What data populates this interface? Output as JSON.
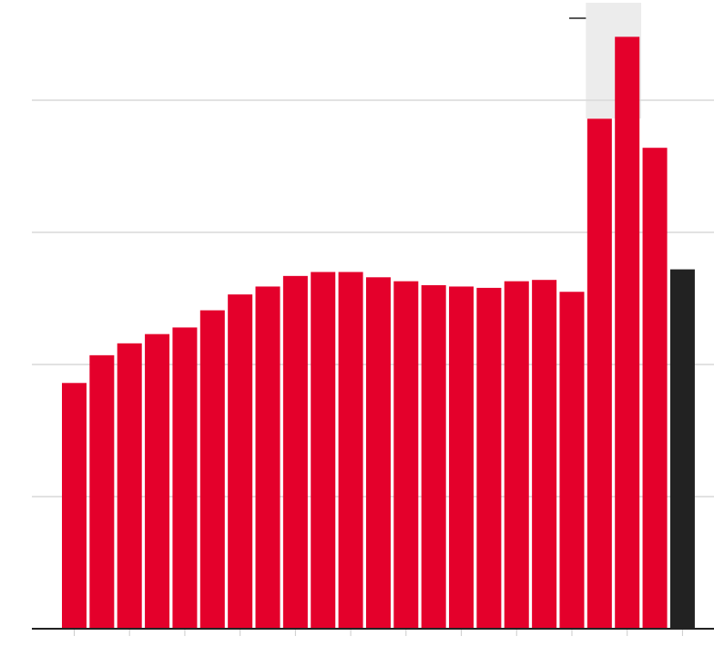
{
  "chart_data": {
    "type": "bar",
    "categories": [
      null,
      null,
      null,
      null,
      null,
      null,
      null,
      null,
      null,
      null,
      null,
      null,
      null,
      null,
      null,
      null,
      null,
      null,
      null,
      null,
      null,
      null,
      null
    ],
    "values": [
      1.86,
      2.07,
      2.16,
      2.23,
      2.28,
      2.41,
      2.53,
      2.59,
      2.67,
      2.7,
      2.7,
      2.66,
      2.63,
      2.6,
      2.59,
      2.58,
      2.63,
      2.64,
      2.55,
      3.86,
      4.48,
      3.64,
      2.72
    ],
    "colors": [
      "#e4002b",
      "#e4002b",
      "#e4002b",
      "#e4002b",
      "#e4002b",
      "#e4002b",
      "#e4002b",
      "#e4002b",
      "#e4002b",
      "#e4002b",
      "#e4002b",
      "#e4002b",
      "#e4002b",
      "#e4002b",
      "#e4002b",
      "#e4002b",
      "#e4002b",
      "#e4002b",
      "#e4002b",
      "#e4002b",
      "#e4002b",
      "#e4002b",
      "#222222"
    ],
    "ylim": [
      0,
      4.75
    ],
    "yticks": [
      0,
      1,
      2,
      3,
      4
    ],
    "grid": true
  }
}
